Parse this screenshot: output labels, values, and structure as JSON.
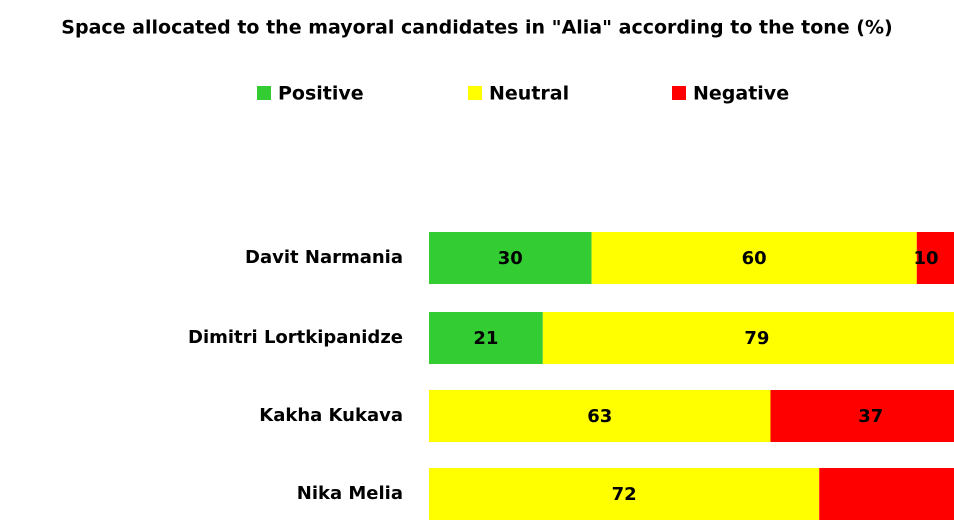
{
  "chart_data": {
    "type": "stacked-bar-horizontal",
    "title": "Space allocated to the mayoral candidates in \"Alia\" according to the tone (%)",
    "categories": [
      "Davit Narmania",
      "Dimitri Lortkipanidze",
      "Kakha Kukava",
      "Nika Melia"
    ],
    "series": [
      {
        "name": "Positive",
        "color": "#33cc33",
        "values": [
          30,
          21,
          null,
          null
        ]
      },
      {
        "name": "Neutral",
        "color": "#ffff00",
        "values": [
          60,
          79,
          63,
          72
        ]
      },
      {
        "name": "Negative",
        "color": "#ff0000",
        "values": [
          10,
          null,
          37,
          28
        ],
        "value_labels": [
          "10",
          null,
          "37",
          null
        ]
      }
    ],
    "legend": "top"
  }
}
